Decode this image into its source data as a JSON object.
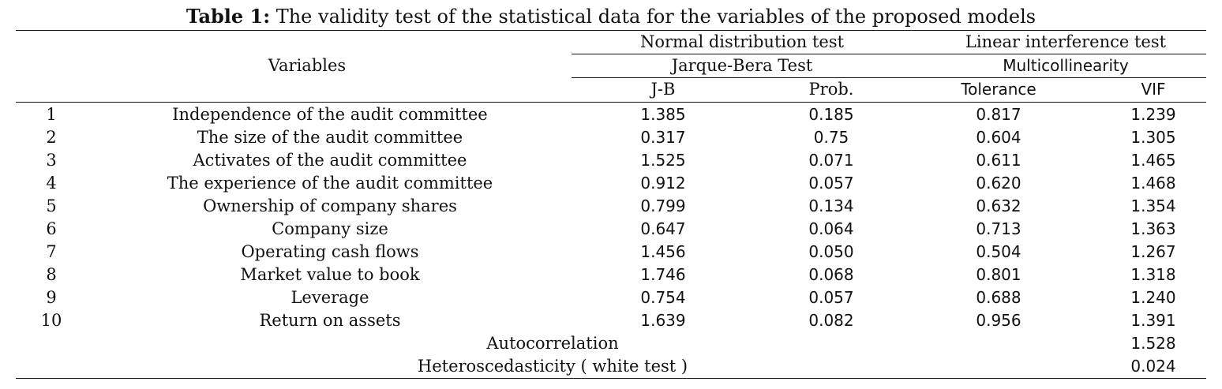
{
  "table": {
    "caption_label": "Table 1:",
    "caption_text": "The validity test of the statistical data for the variables of the proposed models",
    "header": {
      "variables": "Variables",
      "normal_group": "Normal distribution test",
      "normal_sub": "Jarque-Bera Test",
      "linear_group": "Linear interference test",
      "linear_sub": "Multicollinearity",
      "col_jb": "J-B",
      "col_prob": "Prob.",
      "col_tolerance": "Tolerance",
      "col_vif": "VIF"
    },
    "rows": [
      {
        "num": "1",
        "variable": "Independence of the audit committee",
        "jb": "1.385",
        "prob": "0.185",
        "tolerance": "0.817",
        "vif": "1.239"
      },
      {
        "num": "2",
        "variable": "The size of the audit committee",
        "jb": "0.317",
        "prob": "0.75",
        "tolerance": "0.604",
        "vif": "1.305"
      },
      {
        "num": "3",
        "variable": "Activates of the audit committee",
        "jb": "1.525",
        "prob": "0.071",
        "tolerance": "0.611",
        "vif": "1.465"
      },
      {
        "num": "4",
        "variable": "The experience of the audit committee",
        "jb": "0.912",
        "prob": "0.057",
        "tolerance": "0.620",
        "vif": "1.468"
      },
      {
        "num": "5",
        "variable": "Ownership of company shares",
        "jb": "0.799",
        "prob": "0.134",
        "tolerance": "0.632",
        "vif": "1.354"
      },
      {
        "num": "6",
        "variable": "Company size",
        "jb": "0.647",
        "prob": "0.064",
        "tolerance": "0.713",
        "vif": "1.363"
      },
      {
        "num": "7",
        "variable": "Operating cash flows",
        "jb": "1.456",
        "prob": "0.050",
        "tolerance": "0.504",
        "vif": "1.267"
      },
      {
        "num": "8",
        "variable": "Market value to book",
        "jb": "1.746",
        "prob": "0.068",
        "tolerance": "0.801",
        "vif": "1.318"
      },
      {
        "num": "9",
        "variable": "Leverage",
        "jb": "0.754",
        "prob": "0.057",
        "tolerance": "0.688",
        "vif": "1.240"
      },
      {
        "num": "10",
        "variable": "Return on assets",
        "jb": "1.639",
        "prob": "0.082",
        "tolerance": "0.956",
        "vif": "1.391"
      }
    ],
    "footer": [
      {
        "label": "Autocorrelation",
        "value": "1.528"
      },
      {
        "label": "Heteroscedasticity ( white test )",
        "value": "0.024"
      }
    ]
  }
}
